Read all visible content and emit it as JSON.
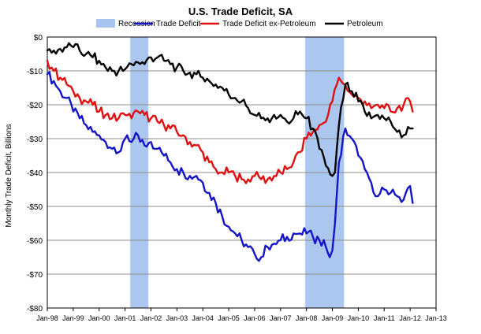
{
  "chart_data": {
    "type": "line",
    "title": "U.S. Trade Deficit, SA",
    "ylabel": "Monthly Trade Deficit, Billions",
    "xlabel": "",
    "ylim": [
      -80,
      0
    ],
    "xlim": [
      "Jan-98",
      "Jan-13"
    ],
    "y_ticks": [
      "$0",
      "-$10",
      "-$20",
      "-$30",
      "-$40",
      "-$50",
      "-$60",
      "-$70",
      "-$80"
    ],
    "x_ticks": [
      "Jan-98",
      "Jan-99",
      "Jan-00",
      "Jan-01",
      "Jan-02",
      "Jan-03",
      "Jan-04",
      "Jan-05",
      "Jan-06",
      "Jan-07",
      "Jan-08",
      "Jan-09",
      "Jan-10",
      "Jan-11",
      "Jan-12",
      "Jan-13"
    ],
    "grid": true,
    "legend_position": "top",
    "recessions": [
      {
        "start": 2001.2,
        "end": 2001.9
      },
      {
        "start": 2007.95,
        "end": 2009.45
      }
    ],
    "series": [
      {
        "name": "Recession",
        "color": "#a6c4ee",
        "kind": "band"
      },
      {
        "name": "Trade Deficit",
        "color": "#1414c8",
        "x": [
          1998.0,
          1998.25,
          1998.5,
          1998.75,
          1999.0,
          1999.25,
          1999.5,
          1999.75,
          2000.0,
          2000.25,
          2000.5,
          2000.75,
          2001.0,
          2001.25,
          2001.5,
          2001.75,
          2002.0,
          2002.25,
          2002.5,
          2002.75,
          2003.0,
          2003.25,
          2003.5,
          2003.75,
          2004.0,
          2004.25,
          2004.5,
          2004.75,
          2005.0,
          2005.25,
          2005.5,
          2005.75,
          2006.0,
          2006.25,
          2006.5,
          2006.75,
          2007.0,
          2007.25,
          2007.5,
          2007.75,
          2008.0,
          2008.25,
          2008.5,
          2008.75,
          2008.9,
          2009.0,
          2009.1,
          2009.25,
          2009.5,
          2009.75,
          2010.0,
          2010.25,
          2010.5,
          2010.75,
          2011.0,
          2011.25,
          2011.5,
          2011.75,
          2012.0,
          2012.1
        ],
        "values": [
          -11,
          -13,
          -16,
          -18,
          -22,
          -24,
          -26,
          -28,
          -29,
          -31,
          -33,
          -34,
          -30,
          -31,
          -29,
          -32,
          -31,
          -33,
          -35,
          -37,
          -39,
          -40,
          -41,
          -41,
          -43,
          -46,
          -49,
          -53,
          -56,
          -58,
          -60,
          -62,
          -64,
          -65,
          -62,
          -61,
          -60,
          -59,
          -58,
          -58,
          -58,
          -59,
          -60,
          -62,
          -65,
          -63,
          -55,
          -37,
          -27,
          -30,
          -35,
          -39,
          -43,
          -47,
          -45,
          -46,
          -47,
          -48,
          -44,
          -49
        ]
      },
      {
        "name": "Trade Deficit ex-Petroleum",
        "color": "#e01010",
        "x": [
          1998.0,
          1998.25,
          1998.5,
          1998.75,
          1999.0,
          1999.25,
          1999.5,
          1999.75,
          2000.0,
          2000.25,
          2000.5,
          2000.75,
          2001.0,
          2001.25,
          2001.5,
          2001.75,
          2002.0,
          2002.25,
          2002.5,
          2002.75,
          2003.0,
          2003.25,
          2003.5,
          2003.75,
          2004.0,
          2004.25,
          2004.5,
          2004.75,
          2005.0,
          2005.25,
          2005.5,
          2005.75,
          2006.0,
          2006.25,
          2006.5,
          2006.75,
          2007.0,
          2007.25,
          2007.5,
          2007.75,
          2008.0,
          2008.25,
          2008.5,
          2008.75,
          2009.0,
          2009.25,
          2009.5,
          2009.75,
          2010.0,
          2010.25,
          2010.5,
          2010.75,
          2011.0,
          2011.25,
          2011.5,
          2011.75,
          2012.0,
          2012.1
        ],
        "values": [
          -7,
          -10,
          -12,
          -14,
          -16,
          -18,
          -19,
          -20,
          -22,
          -23,
          -24,
          -24,
          -23,
          -24,
          -22,
          -23,
          -24,
          -25,
          -26,
          -27,
          -28,
          -29,
          -31,
          -32,
          -34,
          -37,
          -39,
          -40,
          -40,
          -41,
          -42,
          -42,
          -41,
          -42,
          -42,
          -41,
          -40,
          -39,
          -37,
          -34,
          -30,
          -28,
          -26,
          -25,
          -19,
          -12,
          -14,
          -17,
          -18,
          -19,
          -21,
          -20,
          -21,
          -22,
          -21,
          -20,
          -19,
          -22
        ]
      },
      {
        "name": "Petroleum",
        "color": "#000000",
        "x": [
          1998.0,
          1998.25,
          1998.5,
          1998.75,
          1999.0,
          1999.25,
          1999.5,
          1999.75,
          2000.0,
          2000.25,
          2000.5,
          2000.75,
          2001.0,
          2001.25,
          2001.5,
          2001.75,
          2002.0,
          2002.25,
          2002.5,
          2002.75,
          2003.0,
          2003.25,
          2003.5,
          2003.75,
          2004.0,
          2004.25,
          2004.5,
          2004.75,
          2005.0,
          2005.25,
          2005.5,
          2005.75,
          2006.0,
          2006.25,
          2006.5,
          2006.75,
          2007.0,
          2007.25,
          2007.5,
          2007.75,
          2008.0,
          2008.25,
          2008.5,
          2008.75,
          2009.0,
          2009.1,
          2009.25,
          2009.5,
          2009.75,
          2010.0,
          2010.25,
          2010.5,
          2010.75,
          2011.0,
          2011.25,
          2011.5,
          2011.75,
          2012.0,
          2012.1
        ],
        "values": [
          -4,
          -4,
          -3.5,
          -3,
          -3,
          -4,
          -5,
          -6,
          -7,
          -9,
          -10,
          -10,
          -9.5,
          -8,
          -7.5,
          -8,
          -6,
          -6,
          -7,
          -8,
          -9,
          -10,
          -10.5,
          -11,
          -12,
          -13,
          -14,
          -15,
          -17,
          -18,
          -19,
          -21,
          -23,
          -24,
          -24,
          -23,
          -23,
          -25,
          -24,
          -22,
          -24,
          -27,
          -33,
          -38,
          -41,
          -40,
          -26,
          -14,
          -16,
          -19,
          -22,
          -24,
          -23,
          -24,
          -25,
          -28,
          -29,
          -27,
          -27
        ]
      }
    ]
  }
}
